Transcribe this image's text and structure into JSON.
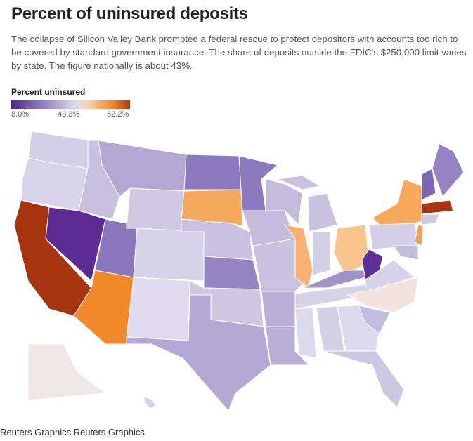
{
  "title": "Percent of uninsured deposits",
  "description": "The collapse of Silicon Valley Bank prompted a federal rescue to protect depositors with accounts too rich to be covered by standard government insurance. The share of deposits outside the FDIC's $250,000 limit varies by state. The figure nationally is about 43%.",
  "legend": {
    "title": "Percent uninsured",
    "ticks": [
      "8.0%",
      "43.3%",
      "62.2%"
    ],
    "colors": [
      "#4f2390",
      "#dddbec",
      "#b0380e"
    ]
  },
  "states": [
    {
      "id": "WA",
      "color": "#d3cfe6"
    },
    {
      "id": "OR",
      "color": "#d7d4e9"
    },
    {
      "id": "CA",
      "color": "#a8330f"
    },
    {
      "id": "NV",
      "color": "#5b2a92"
    },
    {
      "id": "ID",
      "color": "#c7c0df"
    },
    {
      "id": "MT",
      "color": "#b3a7d3"
    },
    {
      "id": "WY",
      "color": "#cfc9e4"
    },
    {
      "id": "UT",
      "color": "#8a77be"
    },
    {
      "id": "CO",
      "color": "#d6d2e8"
    },
    {
      "id": "AZ",
      "color": "#f28a2b"
    },
    {
      "id": "NM",
      "color": "#e0dcee"
    },
    {
      "id": "ND",
      "color": "#8c7abf"
    },
    {
      "id": "SD",
      "color": "#f5a95e"
    },
    {
      "id": "NE",
      "color": "#c8c1df"
    },
    {
      "id": "KS",
      "color": "#9484c4"
    },
    {
      "id": "OK",
      "color": "#cdc7e3"
    },
    {
      "id": "TX",
      "color": "#b4a9d4"
    },
    {
      "id": "MN",
      "color": "#8c7abf"
    },
    {
      "id": "IA",
      "color": "#c3bcdd"
    },
    {
      "id": "MO",
      "color": "#c8c1df"
    },
    {
      "id": "AR",
      "color": "#b9afd6"
    },
    {
      "id": "LA",
      "color": "#b9afd6"
    },
    {
      "id": "WI",
      "color": "#c3bcdd"
    },
    {
      "id": "IL",
      "color": "#f6b173"
    },
    {
      "id": "MI-L",
      "color": "#c8c1df"
    },
    {
      "id": "MI-U",
      "color": "#c8c1df"
    },
    {
      "id": "IN",
      "color": "#d3cfe6"
    },
    {
      "id": "OH",
      "color": "#f9c48d"
    },
    {
      "id": "KY",
      "color": "#a093ca"
    },
    {
      "id": "TN",
      "color": "#d6d2e8"
    },
    {
      "id": "MS",
      "color": "#dcd9ec"
    },
    {
      "id": "AL",
      "color": "#d3cfe6"
    },
    {
      "id": "GA",
      "color": "#dcd9ec"
    },
    {
      "id": "FL",
      "color": "#cdc7e3"
    },
    {
      "id": "SC",
      "color": "#c3bcdd"
    },
    {
      "id": "NC",
      "color": "#f3e3de"
    },
    {
      "id": "VA",
      "color": "#d6d2e8"
    },
    {
      "id": "WV",
      "color": "#5e2f94"
    },
    {
      "id": "PA",
      "color": "#d3cfe6"
    },
    {
      "id": "NY",
      "color": "#f6a95b"
    },
    {
      "id": "VT-NH",
      "color": "#7c68b6"
    },
    {
      "id": "ME",
      "color": "#9484c4"
    },
    {
      "id": "MA",
      "color": "#a8330f"
    },
    {
      "id": "CT-RI",
      "color": "#cfc9e4"
    },
    {
      "id": "NJ",
      "color": "#f5a05a"
    },
    {
      "id": "MD-DE",
      "color": "#c3bcdd"
    },
    {
      "id": "AK",
      "color": "#efe7e6"
    },
    {
      "id": "HI",
      "color": "#d7d4e9"
    }
  ],
  "footer": "Reuters Graphics Reuters Graphics"
}
